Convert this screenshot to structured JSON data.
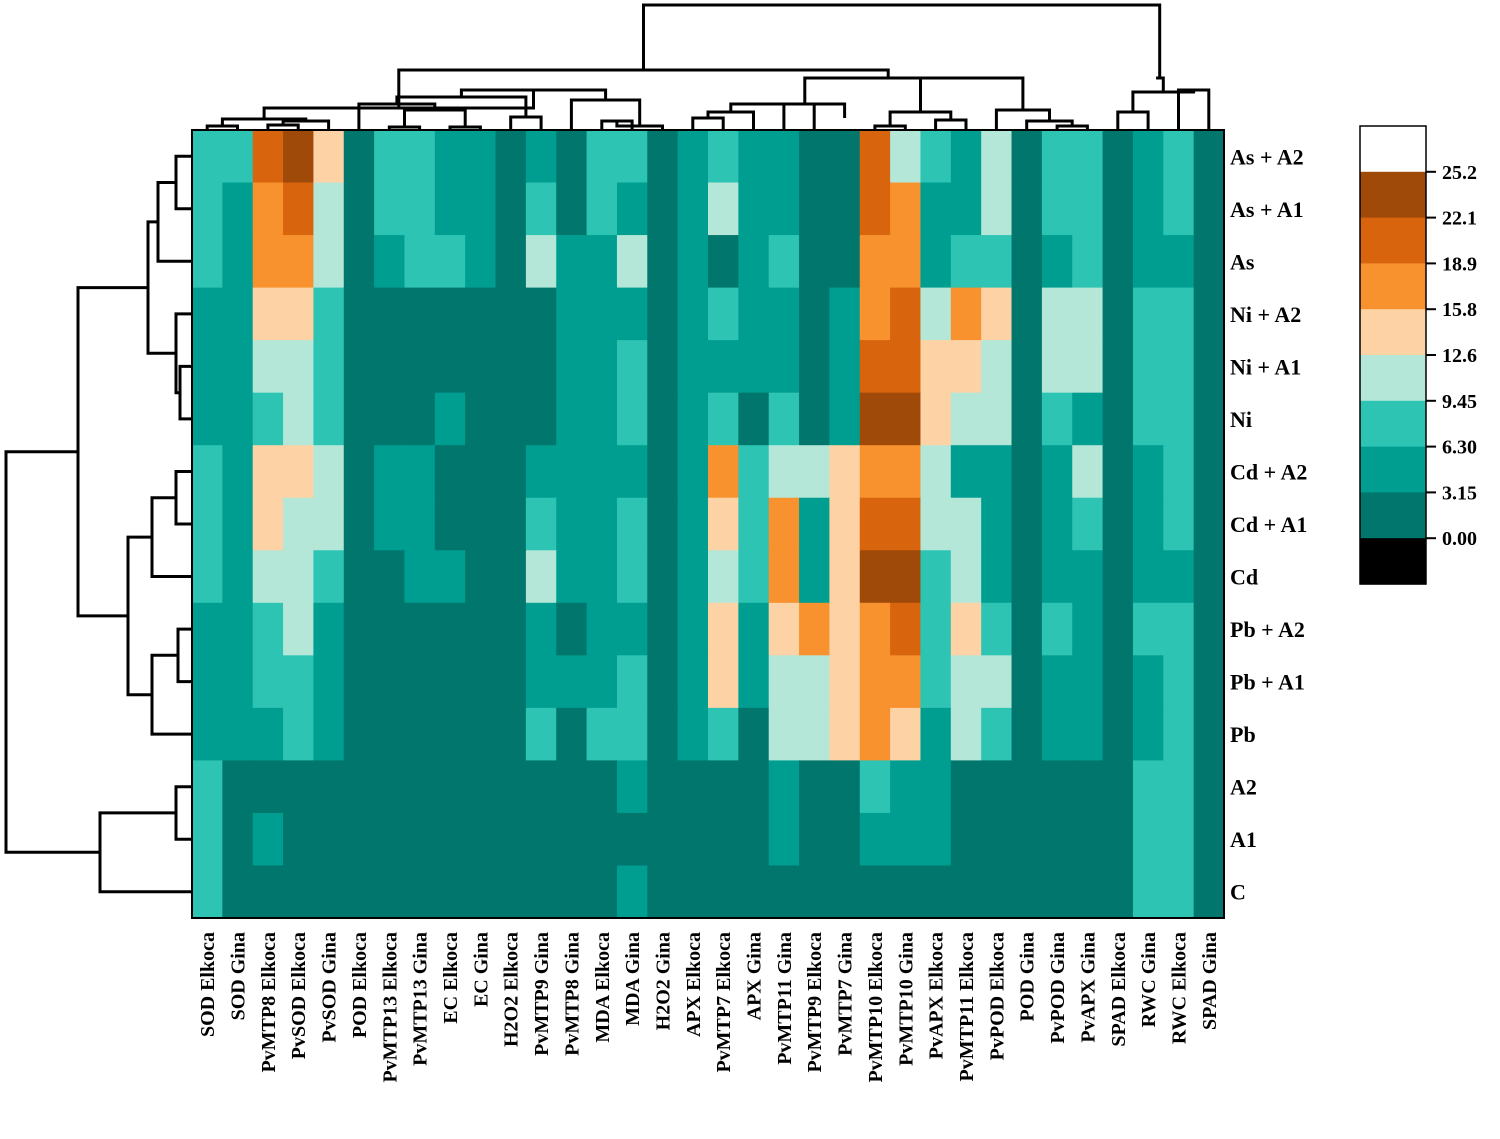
{
  "chart_data": {
    "type": "heatmap",
    "title": "",
    "columns": [
      "SOD Elkoca",
      "SOD Gina",
      "PvMTP8 Elkoca",
      "PvSOD Elkoca",
      "PvSOD Gina",
      "POD Elkoca",
      "PvMTP13 Elkoca",
      "PvMTP13 Gina",
      "EC Elkoca",
      "EC Gina",
      "H2O2 Elkoca",
      "PvMTP9 Gina",
      "PvMTP8 Gina",
      "MDA Elkoca",
      "MDA Gina",
      "H2O2 Gina",
      "APX Elkoca",
      "PvMTP7 Elkoca",
      "APX Gina",
      "PvMTP11 Gina",
      "PvMTP9 Elkoca",
      "PvMTP7 Gina",
      "PvMTP10 Elkoca",
      "PvMTP10 Gina",
      "PvAPX Elkoca",
      "PvMTP11 Elkoca",
      "PvPOD Elkoca",
      "POD Gina",
      "PvPOD Gina",
      "PvAPX Gina",
      "SPAD Elkoca",
      "RWC Gina",
      "RWC Elkoca",
      "SPAD Gina"
    ],
    "rows": [
      "As + A2",
      "As + A1",
      "As",
      "Ni + A2",
      "Ni + A1",
      "Ni",
      "Cd + A2",
      "Cd + A1",
      "Cd",
      "Pb + A2",
      "Pb + A1",
      "Pb",
      "A2",
      "A1",
      "C"
    ],
    "values": [
      [
        7.5,
        7.5,
        20,
        23,
        14,
        1.5,
        7.5,
        7.5,
        4.5,
        4.5,
        1.5,
        4.5,
        1.5,
        7.5,
        7.5,
        1.5,
        4.5,
        7.5,
        4.5,
        4.5,
        1.5,
        1.5,
        20,
        11,
        7.5,
        4.5,
        11,
        1.5,
        7.5,
        7.5,
        1.5,
        4.5,
        7.5,
        1.5
      ],
      [
        7.5,
        4.5,
        17,
        20,
        11,
        1.5,
        7.5,
        7.5,
        4.5,
        4.5,
        1.5,
        7.5,
        1.5,
        7.5,
        4.5,
        1.5,
        4.5,
        11,
        4.5,
        4.5,
        1.5,
        1.5,
        20,
        17,
        4.5,
        4.5,
        11,
        1.5,
        7.5,
        7.5,
        1.5,
        4.5,
        7.5,
        1.5
      ],
      [
        7.5,
        4.5,
        17,
        17,
        11,
        1.5,
        4.5,
        7.5,
        7.5,
        4.5,
        1.5,
        11,
        4.5,
        4.5,
        11,
        1.5,
        4.5,
        1.5,
        4.5,
        7.5,
        1.5,
        1.5,
        17,
        17,
        4.5,
        7.5,
        7.5,
        1.5,
        4.5,
        7.5,
        1.5,
        4.5,
        4.5,
        1.5
      ],
      [
        4.5,
        4.5,
        14,
        14,
        7.5,
        1.5,
        1.5,
        1.5,
        1.5,
        1.5,
        1.5,
        1.5,
        4.5,
        4.5,
        4.5,
        1.5,
        4.5,
        7.5,
        4.5,
        4.5,
        1.5,
        4.5,
        17,
        20,
        11,
        17,
        14,
        1.5,
        11,
        11,
        1.5,
        7.5,
        7.5,
        1.5
      ],
      [
        4.5,
        4.5,
        11,
        11,
        7.5,
        1.5,
        1.5,
        1.5,
        1.5,
        1.5,
        1.5,
        1.5,
        4.5,
        4.5,
        7.5,
        1.5,
        4.5,
        4.5,
        4.5,
        4.5,
        1.5,
        4.5,
        20,
        20,
        14,
        14,
        11,
        1.5,
        11,
        11,
        1.5,
        7.5,
        7.5,
        1.5
      ],
      [
        4.5,
        4.5,
        7.5,
        11,
        7.5,
        1.5,
        1.5,
        1.5,
        4.5,
        1.5,
        1.5,
        1.5,
        4.5,
        4.5,
        7.5,
        1.5,
        4.5,
        7.5,
        1.5,
        7.5,
        1.5,
        4.5,
        23,
        23,
        14,
        11,
        11,
        1.5,
        7.5,
        4.5,
        1.5,
        7.5,
        7.5,
        1.5
      ],
      [
        7.5,
        4.5,
        14,
        14,
        11,
        1.5,
        4.5,
        4.5,
        1.5,
        1.5,
        1.5,
        4.5,
        4.5,
        4.5,
        4.5,
        1.5,
        4.5,
        17,
        7.5,
        11,
        11,
        14,
        17,
        17,
        11,
        4.5,
        4.5,
        1.5,
        4.5,
        11,
        1.5,
        4.5,
        7.5,
        1.5
      ],
      [
        7.5,
        4.5,
        14,
        11,
        11,
        1.5,
        4.5,
        4.5,
        1.5,
        1.5,
        1.5,
        7.5,
        4.5,
        4.5,
        7.5,
        1.5,
        4.5,
        14,
        7.5,
        17,
        4.5,
        14,
        20,
        20,
        11,
        11,
        4.5,
        1.5,
        4.5,
        7.5,
        1.5,
        4.5,
        7.5,
        1.5
      ],
      [
        7.5,
        4.5,
        11,
        11,
        7.5,
        1.5,
        1.5,
        4.5,
        4.5,
        1.5,
        1.5,
        11,
        4.5,
        4.5,
        7.5,
        1.5,
        4.5,
        11,
        7.5,
        17,
        4.5,
        14,
        23,
        23,
        7.5,
        11,
        4.5,
        1.5,
        4.5,
        4.5,
        1.5,
        4.5,
        4.5,
        1.5
      ],
      [
        4.5,
        4.5,
        7.5,
        11,
        4.5,
        1.5,
        1.5,
        1.5,
        1.5,
        1.5,
        1.5,
        4.5,
        1.5,
        4.5,
        4.5,
        1.5,
        4.5,
        14,
        4.5,
        14,
        17,
        14,
        17,
        20,
        7.5,
        14,
        7.5,
        1.5,
        7.5,
        4.5,
        1.5,
        7.5,
        7.5,
        1.5
      ],
      [
        4.5,
        4.5,
        7.5,
        7.5,
        4.5,
        1.5,
        1.5,
        1.5,
        1.5,
        1.5,
        1.5,
        4.5,
        4.5,
        4.5,
        7.5,
        1.5,
        4.5,
        14,
        4.5,
        11,
        11,
        14,
        17,
        17,
        7.5,
        11,
        11,
        1.5,
        4.5,
        4.5,
        1.5,
        4.5,
        7.5,
        1.5
      ],
      [
        4.5,
        4.5,
        4.5,
        7.5,
        4.5,
        1.5,
        1.5,
        1.5,
        1.5,
        1.5,
        1.5,
        7.5,
        1.5,
        7.5,
        7.5,
        1.5,
        4.5,
        7.5,
        1.5,
        11,
        11,
        14,
        17,
        14,
        4.5,
        11,
        7.5,
        1.5,
        4.5,
        4.5,
        1.5,
        4.5,
        7.5,
        1.5
      ],
      [
        7.5,
        1.5,
        1.5,
        1.5,
        1.5,
        1.5,
        1.5,
        1.5,
        1.5,
        1.5,
        1.5,
        1.5,
        1.5,
        1.5,
        4.5,
        1.5,
        1.5,
        1.5,
        1.5,
        4.5,
        1.5,
        1.5,
        7.5,
        4.5,
        4.5,
        1.5,
        1.5,
        1.5,
        1.5,
        1.5,
        1.5,
        7.5,
        7.5,
        1.5
      ],
      [
        7.5,
        1.5,
        4.5,
        1.5,
        1.5,
        1.5,
        1.5,
        1.5,
        1.5,
        1.5,
        1.5,
        1.5,
        1.5,
        1.5,
        1.5,
        1.5,
        1.5,
        1.5,
        1.5,
        4.5,
        1.5,
        1.5,
        4.5,
        4.5,
        4.5,
        1.5,
        1.5,
        1.5,
        1.5,
        1.5,
        1.5,
        7.5,
        7.5,
        1.5
      ],
      [
        7.5,
        1.5,
        1.5,
        1.5,
        1.5,
        1.5,
        1.5,
        1.5,
        1.5,
        1.5,
        1.5,
        1.5,
        1.5,
        1.5,
        4.5,
        1.5,
        1.5,
        1.5,
        1.5,
        1.5,
        1.5,
        1.5,
        1.5,
        1.5,
        1.5,
        1.5,
        1.5,
        1.5,
        1.5,
        1.5,
        1.5,
        7.5,
        7.5,
        1.5
      ]
    ],
    "legend": {
      "ticks": [
        "25.2",
        "22.1",
        "18.9",
        "15.8",
        "12.6",
        "9.45",
        "6.30",
        "3.15",
        "0.00"
      ],
      "bins": [
        {
          "min": 25.2,
          "max": null,
          "color": "#ffffff"
        },
        {
          "min": 22.1,
          "max": 25.2,
          "color": "#a04a0a"
        },
        {
          "min": 18.9,
          "max": 22.1,
          "color": "#d8640e"
        },
        {
          "min": 15.8,
          "max": 18.9,
          "color": "#f7922e"
        },
        {
          "min": 12.6,
          "max": 15.8,
          "color": "#fdd3a5"
        },
        {
          "min": 9.45,
          "max": 12.6,
          "color": "#b5e7d8"
        },
        {
          "min": 6.3,
          "max": 9.45,
          "color": "#2ec4b4"
        },
        {
          "min": 3.15,
          "max": 6.3,
          "color": "#009e91"
        },
        {
          "min": 0.0,
          "max": 3.15,
          "color": "#00766c"
        },
        {
          "min": null,
          "max": 0.0,
          "color": "#000000"
        }
      ]
    }
  }
}
